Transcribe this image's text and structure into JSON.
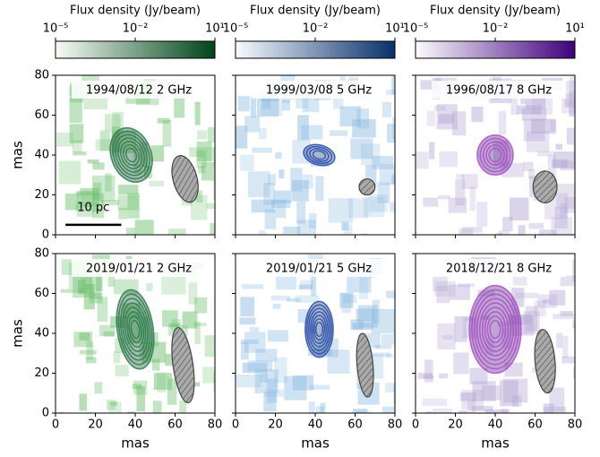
{
  "figure": {
    "colorbars": [
      {
        "label": "Flux density (Jy/beam)",
        "log": true,
        "lim": [
          1e-05,
          10
        ],
        "cmap": [
          "#f7fcf5",
          "#00441b"
        ],
        "ticks": [
          {
            "value": 1e-05,
            "label": "10⁻⁵"
          },
          {
            "value": 0.01,
            "label": "10⁻²"
          },
          {
            "value": 10,
            "label": "10¹"
          }
        ]
      },
      {
        "label": "Flux density (Jy/beam)",
        "log": true,
        "lim": [
          1e-05,
          10
        ],
        "cmap": [
          "#f7fbff",
          "#08306b"
        ],
        "ticks": [
          {
            "value": 1e-05,
            "label": "10⁻⁵"
          },
          {
            "value": 0.01,
            "label": "10⁻²"
          },
          {
            "value": 10,
            "label": "10¹"
          }
        ]
      },
      {
        "label": "Flux density (Jy/beam)",
        "log": true,
        "lim": [
          1e-05,
          10
        ],
        "cmap": [
          "#fcfbfd",
          "#3f007d"
        ],
        "ticks": [
          {
            "value": 1e-05,
            "label": "10⁻⁵"
          },
          {
            "value": 0.01,
            "label": "10⁻²"
          },
          {
            "value": 10,
            "label": "10¹"
          }
        ]
      }
    ],
    "panels": [
      {
        "label": "1994/08/12 2 GHz",
        "color": "#2e7d4f",
        "scalebar": "10 pc"
      },
      {
        "label": "1999/03/08 5 GHz",
        "color": "#2a4fae"
      },
      {
        "label": "1996/08/17 8 GHz",
        "color": "#b050c8"
      },
      {
        "label": "2019/01/21 2 GHz",
        "color": "#2e7d4f"
      },
      {
        "label": "2019/01/21 5 GHz",
        "color": "#2a4fae"
      },
      {
        "label": "2018/12/21 8 GHz",
        "color": "#b050c8"
      }
    ],
    "xlabel": "mas",
    "ylabel": "mas",
    "xlim": [
      0,
      80
    ],
    "ylim": [
      0,
      80
    ],
    "xticks": [
      0,
      20,
      40,
      60,
      80
    ],
    "yticks": [
      0,
      20,
      40,
      60,
      80
    ]
  }
}
